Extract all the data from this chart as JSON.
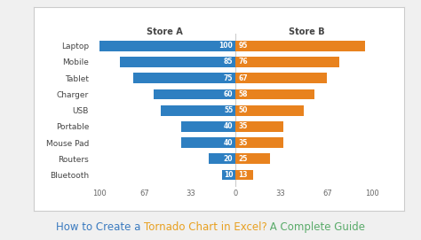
{
  "categories": [
    "Laptop",
    "Mobile",
    "Tablet",
    "Charger",
    "USB",
    "Portable",
    "Mouse Pad",
    "Routers",
    "Bluetooth"
  ],
  "store_a": [
    100,
    85,
    75,
    60,
    55,
    40,
    40,
    20,
    10
  ],
  "store_b": [
    95,
    76,
    67,
    58,
    50,
    35,
    35,
    25,
    13
  ],
  "color_a": "#2e7fc1",
  "color_b": "#e8821e",
  "bg_color": "#f0f0f0",
  "card_color": "#ffffff",
  "xlim": [
    -105,
    105
  ],
  "xticks": [
    -100,
    -67,
    -33,
    0,
    33,
    67,
    100
  ],
  "xticklabels": [
    "100",
    "67",
    "33",
    "0",
    "33",
    "67",
    "100"
  ],
  "legend_a": "Store A",
  "legend_b": "Store B",
  "bar_height": 0.65,
  "title_parts": [
    {
      "text": "How to Create a ",
      "color": "#3a7abf"
    },
    {
      "text": "Tornado Chart in Excel?",
      "color": "#e8a020"
    },
    {
      "text": " A Complete Guide",
      "color": "#5aab6a"
    }
  ],
  "label_fontsize": 5.5,
  "tick_fontsize": 6.0,
  "legend_fontsize": 7.0,
  "category_fontsize": 6.5,
  "title_fontsize": 8.5
}
